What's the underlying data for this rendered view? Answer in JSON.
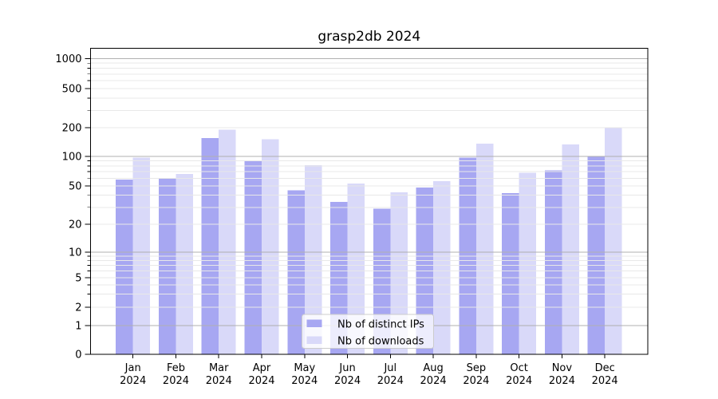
{
  "chart_data": {
    "type": "bar",
    "title": "grasp2db 2024",
    "year": "2024",
    "categories": [
      "Jan",
      "Feb",
      "Mar",
      "Apr",
      "May",
      "Jun",
      "Jul",
      "Aug",
      "Sep",
      "Oct",
      "Nov",
      "Dec"
    ],
    "series": [
      {
        "name": "Nb of distinct IPs",
        "key": "distinct-ips",
        "color": "#a7a7f2",
        "values": [
          58,
          60,
          155,
          90,
          45,
          34,
          29,
          48,
          97,
          42,
          72,
          100
        ]
      },
      {
        "name": "Nb of downloads",
        "key": "downloads",
        "color": "#d9d9f9",
        "values": [
          97,
          66,
          190,
          152,
          81,
          53,
          43,
          56,
          136,
          68,
          134,
          198
        ]
      }
    ],
    "yticks": [
      0,
      1,
      2,
      5,
      10,
      20,
      50,
      100,
      200,
      500,
      1000
    ],
    "ylim": [
      0,
      1100
    ],
    "scale": "symlog",
    "grid": true,
    "legend_position": "lower center",
    "colors": {
      "major_grid": "#b0b0b0",
      "minor_grid": "#e8e8e8",
      "spine": "#000000",
      "text": "#000000",
      "legend_border": "#cccccc",
      "legend_fill": "rgba(255,255,255,0.8)"
    }
  }
}
